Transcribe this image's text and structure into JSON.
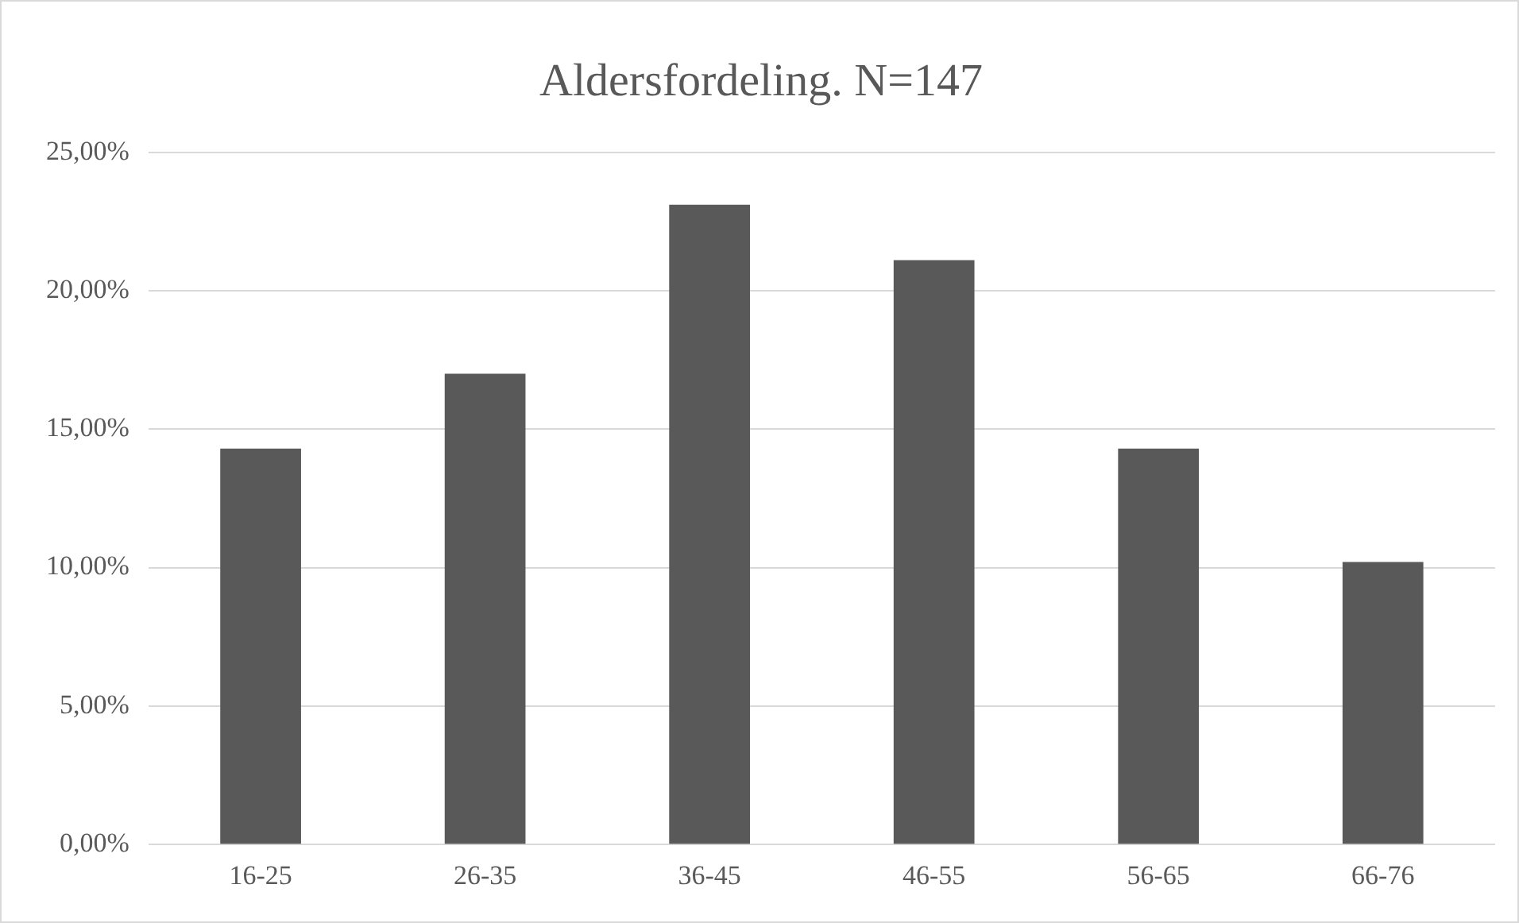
{
  "chart_data": {
    "type": "bar",
    "title": "Aldersfordeling. N=147",
    "categories": [
      "16-25",
      "26-35",
      "36-45",
      "46-55",
      "56-65",
      "66-76"
    ],
    "values": [
      14.3,
      17.0,
      23.1,
      21.1,
      14.3,
      10.2
    ],
    "color": "#595959",
    "ylim": [
      0,
      25
    ],
    "yticks": [
      {
        "value": 0,
        "label": "0,00%"
      },
      {
        "value": 5,
        "label": "5,00%"
      },
      {
        "value": 10,
        "label": "10,00%"
      },
      {
        "value": 15,
        "label": "15,00%"
      },
      {
        "value": 20,
        "label": "20,00%"
      },
      {
        "value": 25,
        "label": "25,00%"
      }
    ],
    "grid": "y",
    "legend": false
  }
}
